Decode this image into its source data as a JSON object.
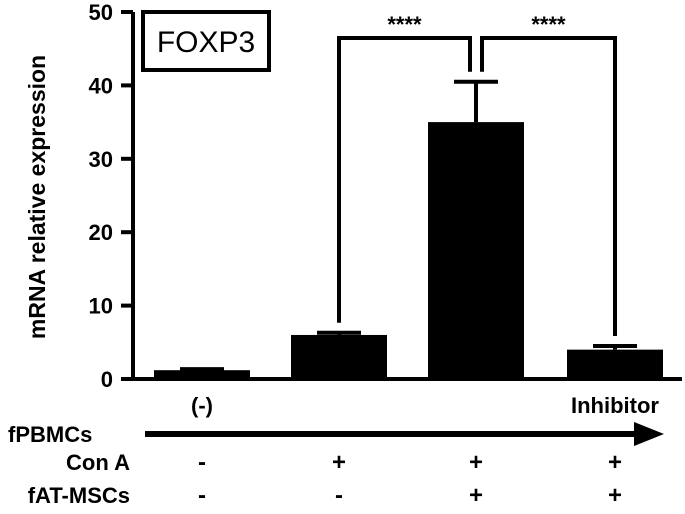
{
  "chart_data": {
    "type": "bar",
    "title": "FOXP3",
    "ylabel": "mRNA relative expression",
    "xlabel": "",
    "ylim": [
      0,
      50
    ],
    "yticks": [
      0,
      10,
      20,
      30,
      40,
      50
    ],
    "grid": false,
    "legend": "none",
    "bar_color": "#000000",
    "categories": [
      "(-)",
      "",
      "",
      "Inhibitor"
    ],
    "values": [
      1.2,
      6.0,
      35.0,
      4.0
    ],
    "errors": [
      0.15,
      0.3,
      5.5,
      0.5
    ],
    "significance": [
      {
        "from": 1,
        "to": 2,
        "label": "****"
      },
      {
        "from": 2,
        "to": 3,
        "label": "****"
      }
    ],
    "condition_arrow_label": "fPBMCs",
    "conditions": [
      {
        "label": "Con A",
        "marks": [
          "-",
          "+",
          "+",
          "+"
        ]
      },
      {
        "label": "fAT-MSCs",
        "marks": [
          "-",
          "-",
          "+",
          "+"
        ]
      }
    ]
  }
}
